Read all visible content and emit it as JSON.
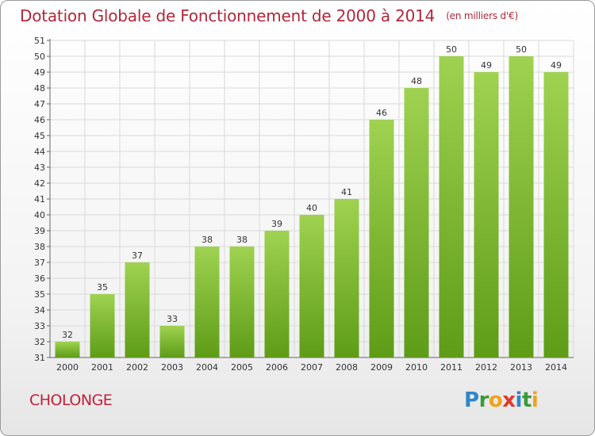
{
  "title": "Dotation Globale de Fonctionnement de 2000 à 2014",
  "unit": "(en milliers d'€)",
  "commune": "CHOLONGE",
  "logo": {
    "letters": [
      "P",
      "r",
      "o",
      "x",
      "i",
      "t",
      "i"
    ],
    "colors": [
      "#2f86c8",
      "#3a9a3a",
      "#f2a01e",
      "#e0392b",
      "#2f86c8",
      "#3a9a3a",
      "#f2a01e"
    ]
  },
  "colors": {
    "title": "#b3263a",
    "bar_top": "#9fd250",
    "bar_bottom": "#5e9c17",
    "grid": "#d9d9d9"
  },
  "chart_data": {
    "type": "bar",
    "categories": [
      "2000",
      "2001",
      "2002",
      "2003",
      "2004",
      "2005",
      "2006",
      "2007",
      "2008",
      "2009",
      "2010",
      "2011",
      "2012",
      "2013",
      "2014"
    ],
    "values": [
      32,
      35,
      37,
      33,
      38,
      38,
      39,
      40,
      41,
      46,
      48,
      50,
      49,
      50,
      49
    ],
    "ylim": [
      31,
      51
    ],
    "yticks": [
      31,
      32,
      33,
      34,
      35,
      36,
      37,
      38,
      39,
      40,
      41,
      42,
      43,
      44,
      45,
      46,
      47,
      48,
      49,
      50,
      51
    ],
    "grid": true,
    "data_labels": true
  }
}
